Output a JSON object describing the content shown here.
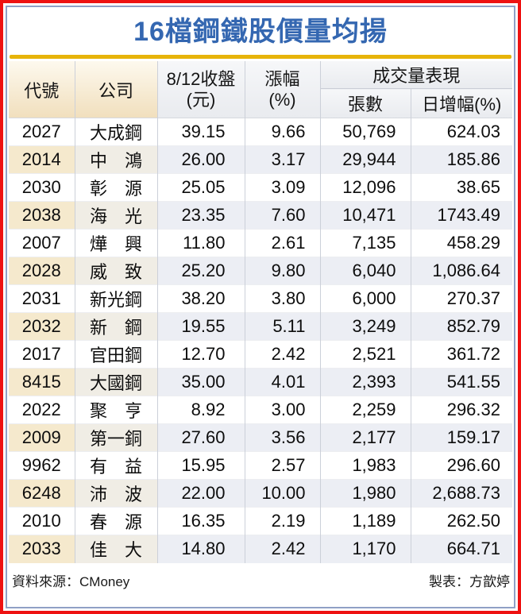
{
  "title": "16檔鋼鐵股價量均揚",
  "header": {
    "code": "代號",
    "company": "公司",
    "close_l1": "8/12收盤",
    "close_l2": "(元)",
    "change_l1": "漲幅",
    "change_l2": "(%)",
    "volume_group": "成交量表現",
    "lots": "張數",
    "daily_gain": "日增幅(%)"
  },
  "rows": [
    {
      "code": "2027",
      "company": "大成鋼",
      "close": "39.15",
      "change": "9.66",
      "lots": "50,769",
      "gain": "624.03"
    },
    {
      "code": "2014",
      "company": "中　鴻",
      "close": "26.00",
      "change": "3.17",
      "lots": "29,944",
      "gain": "185.86"
    },
    {
      "code": "2030",
      "company": "彰　源",
      "close": "25.05",
      "change": "3.09",
      "lots": "12,096",
      "gain": "38.65"
    },
    {
      "code": "2038",
      "company": "海　光",
      "close": "23.35",
      "change": "7.60",
      "lots": "10,471",
      "gain": "1743.49"
    },
    {
      "code": "2007",
      "company": "燁　興",
      "close": "11.80",
      "change": "2.61",
      "lots": "7,135",
      "gain": "458.29"
    },
    {
      "code": "2028",
      "company": "威　致",
      "close": "25.20",
      "change": "9.80",
      "lots": "6,040",
      "gain": "1,086.64"
    },
    {
      "code": "2031",
      "company": "新光鋼",
      "close": "38.20",
      "change": "3.80",
      "lots": "6,000",
      "gain": "270.37"
    },
    {
      "code": "2032",
      "company": "新　鋼",
      "close": "19.55",
      "change": "5.11",
      "lots": "3,249",
      "gain": "852.79"
    },
    {
      "code": "2017",
      "company": "官田鋼",
      "close": "12.70",
      "change": "2.42",
      "lots": "2,521",
      "gain": "361.72"
    },
    {
      "code": "8415",
      "company": "大國鋼",
      "close": "35.00",
      "change": "4.01",
      "lots": "2,393",
      "gain": "541.55"
    },
    {
      "code": "2022",
      "company": "聚　亨",
      "close": "8.92",
      "change": "3.00",
      "lots": "2,259",
      "gain": "296.32"
    },
    {
      "code": "2009",
      "company": "第一銅",
      "close": "27.60",
      "change": "3.56",
      "lots": "2,177",
      "gain": "159.17"
    },
    {
      "code": "9962",
      "company": "有　益",
      "close": "15.95",
      "change": "2.57",
      "lots": "1,983",
      "gain": "296.60"
    },
    {
      "code": "6248",
      "company": "沛　波",
      "close": "22.00",
      "change": "10.00",
      "lots": "1,980",
      "gain": "2,688.73"
    },
    {
      "code": "2010",
      "company": "春　源",
      "close": "16.35",
      "change": "2.19",
      "lots": "1,189",
      "gain": "262.50"
    },
    {
      "code": "2033",
      "company": "佳　大",
      "close": "14.80",
      "change": "2.42",
      "lots": "1,170",
      "gain": "664.71"
    }
  ],
  "footer": {
    "source": "資料來源：CMoney",
    "credit": "製表：方歆婷"
  },
  "colors": {
    "frame_red": "#ee1111",
    "frame_blue": "#8fa0c6",
    "title_blue": "#3467b1",
    "gold": "#e7b409",
    "header_cream_top": "#fdf9ee",
    "header_cream_bottom": "#f1dfbd",
    "header_gray": "#edeff2",
    "row_shade": "#eceef4",
    "row_shade_code": "#f5e9cd",
    "row_shade_company": "#f0ede5",
    "grid_line": "#ccd0d9"
  },
  "chart_data": {
    "type": "table",
    "title": "16檔鋼鐵股價量均揚",
    "columns": [
      "代號",
      "公司",
      "8/12收盤(元)",
      "漲幅(%)",
      "張數",
      "日增幅(%)"
    ],
    "column_groups": {
      "成交量表現": [
        "張數",
        "日增幅(%)"
      ]
    },
    "rows": [
      [
        "2027",
        "大成鋼",
        39.15,
        9.66,
        50769,
        624.03
      ],
      [
        "2014",
        "中鴻",
        26.0,
        3.17,
        29944,
        185.86
      ],
      [
        "2030",
        "彰源",
        25.05,
        3.09,
        12096,
        38.65
      ],
      [
        "2038",
        "海光",
        23.35,
        7.6,
        10471,
        1743.49
      ],
      [
        "2007",
        "燁興",
        11.8,
        2.61,
        7135,
        458.29
      ],
      [
        "2028",
        "威致",
        25.2,
        9.8,
        6040,
        1086.64
      ],
      [
        "2031",
        "新光鋼",
        38.2,
        3.8,
        6000,
        270.37
      ],
      [
        "2032",
        "新鋼",
        19.55,
        5.11,
        3249,
        852.79
      ],
      [
        "2017",
        "官田鋼",
        12.7,
        2.42,
        2521,
        361.72
      ],
      [
        "8415",
        "大國鋼",
        35.0,
        4.01,
        2393,
        541.55
      ],
      [
        "2022",
        "聚亨",
        8.92,
        3.0,
        2259,
        296.32
      ],
      [
        "2009",
        "第一銅",
        27.6,
        3.56,
        2177,
        159.17
      ],
      [
        "9962",
        "有益",
        15.95,
        2.57,
        1983,
        296.6
      ],
      [
        "6248",
        "沛波",
        22.0,
        10.0,
        1980,
        2688.73
      ],
      [
        "2010",
        "春源",
        16.35,
        2.19,
        1189,
        262.5
      ],
      [
        "2033",
        "佳大",
        14.8,
        2.42,
        1170,
        664.71
      ]
    ],
    "source": "CMoney",
    "prepared_by": "方歆婷"
  }
}
